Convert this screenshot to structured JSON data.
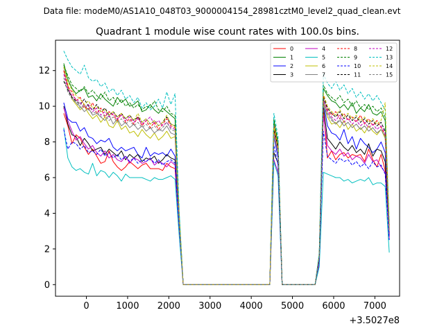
{
  "figure": {
    "suptitle": "Data file: modeM0/AS1A10_048T03_9000004154_28981cztM0_level2_quad_clean.evt",
    "offset_label": "+3.5027e8"
  },
  "chart_data": {
    "type": "line",
    "title": "Quadrant 1 module wise count rates with 100.0s bins.",
    "xlabel": "",
    "ylabel": "",
    "x_offset": 350270000,
    "xlim": [
      -750,
      7600
    ],
    "ylim": [
      -0.65,
      13.7
    ],
    "xticks": [
      0,
      1000,
      2000,
      3000,
      4000,
      5000,
      6000,
      7000
    ],
    "yticks": [
      0,
      2,
      4,
      6,
      8,
      10,
      12
    ],
    "grid": false,
    "legend_position": "top-right",
    "x": [
      -550,
      -450,
      -350,
      -250,
      -150,
      -50,
      50,
      150,
      250,
      350,
      450,
      550,
      650,
      750,
      850,
      950,
      1050,
      1150,
      1250,
      1350,
      1450,
      1550,
      1650,
      1750,
      1850,
      1950,
      2050,
      2150,
      2250,
      2350,
      2450,
      4450,
      4550,
      4650,
      4750,
      5550,
      5650,
      5750,
      5850,
      5950,
      6050,
      6150,
      6250,
      6350,
      6450,
      6550,
      6650,
      6750,
      6850,
      6950,
      7050,
      7150,
      7250,
      7350
    ],
    "series": [
      {
        "name": "0",
        "color": "#ff0000",
        "dash": false,
        "values": [
          9.6,
          8.9,
          7.9,
          8.4,
          8.2,
          7.7,
          7.3,
          7.6,
          7.2,
          6.8,
          6.9,
          7.5,
          6.9,
          6.6,
          6.4,
          6.6,
          6.9,
          6.7,
          6.5,
          6.7,
          6.8,
          6.5,
          6.5,
          6.5,
          6.4,
          6.8,
          6.6,
          6.5,
          3.2,
          0,
          0,
          0,
          8.8,
          7.6,
          0,
          0,
          1.3,
          9.8,
          7.1,
          7.5,
          7.0,
          7.3,
          7.4,
          7.1,
          7.3,
          7.2,
          7.3,
          6.9,
          7.6,
          7.0,
          6.6,
          7.3,
          6.4,
          2.6
        ]
      },
      {
        "name": "1",
        "color": "#008000",
        "dash": false,
        "values": [
          12.4,
          11.5,
          11.0,
          10.7,
          10.9,
          11.0,
          10.5,
          10.6,
          10.3,
          10.7,
          10.4,
          10.2,
          10.0,
          10.5,
          10.2,
          10.4,
          10.0,
          10.1,
          10.3,
          9.7,
          9.8,
          10.1,
          9.8,
          9.6,
          9.9,
          9.7,
          9.5,
          9.3,
          3.9,
          0,
          0,
          0,
          9.2,
          7.9,
          0,
          0,
          1.6,
          11.0,
          10.6,
          10.3,
          10.2,
          9.9,
          10.1,
          9.8,
          10.2,
          9.6,
          9.9,
          9.7,
          10.1,
          9.6,
          9.5,
          9.7,
          9.2,
          3.1
        ]
      },
      {
        "name": "2",
        "color": "#0000ff",
        "dash": false,
        "values": [
          10.2,
          9.3,
          9.1,
          9.1,
          8.6,
          8.8,
          8.3,
          8.2,
          7.9,
          8.1,
          8.0,
          8.2,
          7.7,
          7.5,
          7.7,
          7.5,
          7.6,
          7.7,
          7.3,
          7.1,
          7.7,
          7.2,
          7.4,
          7.3,
          7.4,
          7.2,
          7.6,
          7.2,
          3.4,
          0,
          0,
          0,
          8.3,
          7.1,
          0,
          0,
          1.4,
          10.3,
          8.9,
          8.5,
          8.4,
          8.1,
          8.7,
          7.9,
          8.3,
          7.6,
          8.2,
          7.9,
          7.7,
          7.4,
          7.6,
          8.0,
          7.4,
          2.8
        ]
      },
      {
        "name": "3",
        "color": "#000000",
        "dash": false,
        "values": [
          10.0,
          9.0,
          8.4,
          8.3,
          7.8,
          8.2,
          7.9,
          7.5,
          7.6,
          7.7,
          7.3,
          7.6,
          7.4,
          7.2,
          7.5,
          7.0,
          7.3,
          7.1,
          7.3,
          6.9,
          7.1,
          7.0,
          7.2,
          6.8,
          7.0,
          7.3,
          7.1,
          7.0,
          3.3,
          0,
          0,
          0,
          7.4,
          6.8,
          0,
          0,
          1.3,
          10.0,
          8.2,
          7.9,
          7.6,
          8.0,
          7.7,
          7.5,
          7.8,
          7.4,
          7.6,
          7.3,
          7.9,
          7.2,
          7.6,
          7.5,
          6.9,
          2.7
        ]
      },
      {
        "name": "4",
        "color": "#bf00bf",
        "dash": false,
        "values": [
          9.9,
          9.2,
          8.6,
          8.1,
          8.3,
          7.9,
          7.6,
          7.8,
          7.4,
          7.2,
          7.5,
          7.1,
          7.3,
          7.0,
          6.9,
          7.2,
          6.8,
          7.1,
          7.0,
          6.8,
          6.9,
          7.1,
          6.7,
          6.9,
          6.8,
          6.6,
          6.9,
          6.7,
          3.1,
          0,
          0,
          0,
          7.0,
          6.3,
          0,
          0,
          1.2,
          9.5,
          7.8,
          7.5,
          7.3,
          7.6,
          7.2,
          7.4,
          7.0,
          7.2,
          7.1,
          6.8,
          7.3,
          6.9,
          7.0,
          6.6,
          6.3,
          2.6
        ]
      },
      {
        "name": "5",
        "color": "#00bfbf",
        "dash": false,
        "values": [
          8.8,
          7.1,
          6.6,
          6.4,
          6.5,
          6.3,
          6.2,
          6.8,
          6.1,
          6.4,
          6.3,
          6.0,
          6.3,
          6.1,
          5.8,
          6.2,
          6.0,
          6.0,
          6.0,
          6.0,
          5.9,
          5.8,
          6.0,
          5.9,
          5.9,
          6.0,
          6.1,
          5.9,
          2.8,
          0,
          0,
          0,
          6.9,
          6.1,
          0,
          0,
          1.0,
          6.3,
          6.2,
          6.1,
          6.0,
          6.0,
          5.8,
          5.9,
          5.7,
          5.8,
          5.9,
          5.8,
          6.0,
          5.6,
          5.7,
          5.7,
          5.5,
          1.8
        ]
      },
      {
        "name": "6",
        "color": "#bfbf00",
        "dash": false,
        "values": [
          12.0,
          11.2,
          10.4,
          10.1,
          9.8,
          10.0,
          9.6,
          9.3,
          9.5,
          9.1,
          9.4,
          8.9,
          8.8,
          9.2,
          8.7,
          8.9,
          8.5,
          8.6,
          8.3,
          8.7,
          8.4,
          8.2,
          8.5,
          8.1,
          8.3,
          8.6,
          8.2,
          8.3,
          3.6,
          0,
          0,
          0,
          8.6,
          7.6,
          0,
          0,
          1.5,
          10.2,
          9.4,
          9.0,
          9.1,
          8.8,
          9.2,
          8.7,
          9.0,
          8.6,
          8.8,
          8.5,
          8.9,
          8.6,
          8.4,
          8.7,
          8.2,
          3.0
        ]
      },
      {
        "name": "7",
        "color": "#808080",
        "dash": false,
        "values": [
          12.2,
          11.0,
          10.5,
          10.2,
          10.0,
          9.7,
          9.9,
          9.5,
          9.6,
          9.4,
          9.2,
          9.5,
          9.0,
          9.3,
          8.9,
          9.1,
          8.8,
          9.0,
          8.7,
          8.9,
          8.6,
          8.8,
          8.5,
          8.7,
          8.6,
          8.9,
          8.5,
          8.4,
          3.7,
          0,
          0,
          0,
          8.3,
          7.4,
          0,
          0,
          1.5,
          10.4,
          9.6,
          9.3,
          9.0,
          9.2,
          8.9,
          9.1,
          8.8,
          9.0,
          8.7,
          8.9,
          8.6,
          8.8,
          8.5,
          8.7,
          8.3,
          3.1
        ]
      },
      {
        "name": "8",
        "color": "#ff0000",
        "dash": true,
        "values": [
          12.0,
          11.1,
          10.8,
          10.3,
          10.5,
          10.0,
          9.8,
          10.2,
          9.6,
          9.9,
          9.4,
          9.7,
          9.5,
          9.2,
          9.6,
          9.1,
          9.3,
          9.0,
          9.4,
          8.9,
          9.2,
          8.8,
          9.1,
          8.7,
          9.0,
          9.3,
          8.9,
          8.8,
          3.8,
          0,
          0,
          0,
          8.9,
          7.8,
          0,
          0,
          1.6,
          10.6,
          9.8,
          9.5,
          9.7,
          9.3,
          9.6,
          9.2,
          9.4,
          9.1,
          9.5,
          9.0,
          9.3,
          8.9,
          9.2,
          8.8,
          8.4,
          3.2
        ]
      },
      {
        "name": "9",
        "color": "#008000",
        "dash": true,
        "values": [
          12.3,
          11.7,
          11.2,
          11.0,
          10.8,
          11.1,
          10.7,
          10.9,
          10.6,
          10.4,
          10.8,
          10.3,
          10.5,
          10.1,
          10.4,
          10.0,
          10.2,
          9.9,
          10.1,
          9.8,
          10.0,
          9.9,
          10.3,
          9.8,
          9.7,
          10.0,
          9.6,
          9.5,
          4.0,
          0,
          0,
          0,
          9.3,
          8.0,
          0,
          0,
          1.7,
          11.2,
          10.7,
          10.5,
          10.3,
          10.6,
          10.2,
          10.4,
          10.0,
          10.3,
          9.9,
          10.1,
          9.8,
          10.0,
          9.7,
          9.9,
          9.4,
          3.3
        ]
      },
      {
        "name": "10",
        "color": "#0000ff",
        "dash": true,
        "values": [
          8.7,
          7.6,
          8.0,
          7.9,
          7.6,
          7.8,
          7.4,
          7.5,
          7.3,
          7.6,
          7.2,
          7.4,
          7.1,
          7.3,
          7.0,
          7.2,
          6.9,
          7.1,
          6.8,
          7.0,
          6.9,
          7.1,
          6.8,
          7.0,
          6.7,
          6.9,
          7.0,
          6.8,
          3.2,
          0,
          0,
          0,
          7.8,
          6.7,
          0,
          0,
          1.3,
          8.6,
          7.2,
          7.0,
          6.8,
          7.1,
          6.9,
          7.0,
          6.7,
          6.9,
          6.6,
          6.8,
          6.5,
          6.9,
          6.6,
          6.7,
          6.2,
          2.5
        ]
      },
      {
        "name": "11",
        "color": "#000000",
        "dash": true,
        "values": [
          11.4,
          10.9,
          10.5,
          10.3,
          10.1,
          10.4,
          10.0,
          9.8,
          10.1,
          9.7,
          9.9,
          9.5,
          9.7,
          9.4,
          9.6,
          9.3,
          9.5,
          9.2,
          9.4,
          9.1,
          9.3,
          9.0,
          9.2,
          8.9,
          9.1,
          9.4,
          9.0,
          8.9,
          3.8,
          0,
          0,
          0,
          8.7,
          7.7,
          0,
          0,
          1.6,
          10.5,
          9.9,
          9.6,
          9.4,
          9.7,
          9.3,
          9.5,
          9.2,
          9.4,
          9.1,
          9.3,
          9.0,
          9.2,
          8.9,
          9.1,
          8.6,
          3.2
        ]
      },
      {
        "name": "12",
        "color": "#bf00bf",
        "dash": true,
        "values": [
          11.8,
          11.0,
          10.6,
          10.4,
          10.2,
          9.9,
          10.1,
          9.7,
          9.9,
          9.5,
          9.7,
          9.4,
          9.6,
          9.3,
          9.5,
          9.2,
          9.4,
          9.1,
          9.3,
          9.0,
          9.2,
          9.4,
          9.0,
          9.2,
          8.9,
          9.1,
          8.8,
          8.7,
          3.7,
          0,
          0,
          0,
          8.5,
          7.5,
          0,
          0,
          1.5,
          10.3,
          9.7,
          9.4,
          9.2,
          9.5,
          9.1,
          9.3,
          9.0,
          9.2,
          8.9,
          9.1,
          8.8,
          9.0,
          8.7,
          8.9,
          8.5,
          3.1
        ]
      },
      {
        "name": "13",
        "color": "#00bfbf",
        "dash": true,
        "values": [
          13.1,
          12.6,
          12.2,
          12.0,
          11.8,
          12.3,
          11.6,
          11.4,
          11.5,
          11.1,
          11.3,
          10.8,
          11.0,
          10.6,
          10.9,
          10.4,
          10.6,
          10.2,
          10.5,
          9.9,
          10.2,
          9.8,
          10.0,
          10.4,
          9.9,
          10.8,
          10.1,
          10.7,
          4.2,
          0,
          0,
          0,
          9.6,
          8.3,
          0,
          0,
          1.8,
          11.8,
          11.3,
          11.0,
          11.4,
          10.9,
          11.2,
          10.7,
          11.0,
          10.5,
          10.8,
          10.4,
          10.7,
          10.3,
          10.6,
          10.2,
          9.8,
          3.5
        ]
      },
      {
        "name": "14",
        "color": "#bfbf00",
        "dash": true,
        "values": [
          12.2,
          11.4,
          10.9,
          10.6,
          10.4,
          10.1,
          10.3,
          9.9,
          10.0,
          9.7,
          9.8,
          9.5,
          9.7,
          9.4,
          9.6,
          9.3,
          9.5,
          9.2,
          9.6,
          9.1,
          9.3,
          9.0,
          9.2,
          8.9,
          9.1,
          9.5,
          9.0,
          8.9,
          3.8,
          0,
          0,
          0,
          8.8,
          7.8,
          0,
          0,
          1.6,
          10.7,
          10.0,
          9.7,
          9.5,
          9.8,
          9.4,
          9.6,
          9.3,
          9.5,
          9.2,
          9.4,
          9.1,
          9.3,
          9.0,
          9.2,
          10.2,
          3.2
        ]
      },
      {
        "name": "15",
        "color": "#808080",
        "dash": true,
        "values": [
          11.6,
          10.8,
          10.4,
          10.2,
          9.9,
          10.1,
          9.8,
          9.6,
          9.7,
          9.4,
          9.5,
          9.2,
          9.4,
          9.1,
          9.3,
          9.0,
          9.2,
          8.9,
          9.1,
          8.8,
          9.0,
          8.7,
          8.9,
          8.6,
          8.8,
          9.1,
          8.7,
          8.6,
          3.6,
          0,
          0,
          0,
          8.4,
          7.4,
          0,
          0,
          1.5,
          10.1,
          9.5,
          9.2,
          9.0,
          9.3,
          8.9,
          9.1,
          8.8,
          9.0,
          8.7,
          8.9,
          8.6,
          8.8,
          8.5,
          8.7,
          8.3,
          3.0
        ]
      }
    ]
  }
}
